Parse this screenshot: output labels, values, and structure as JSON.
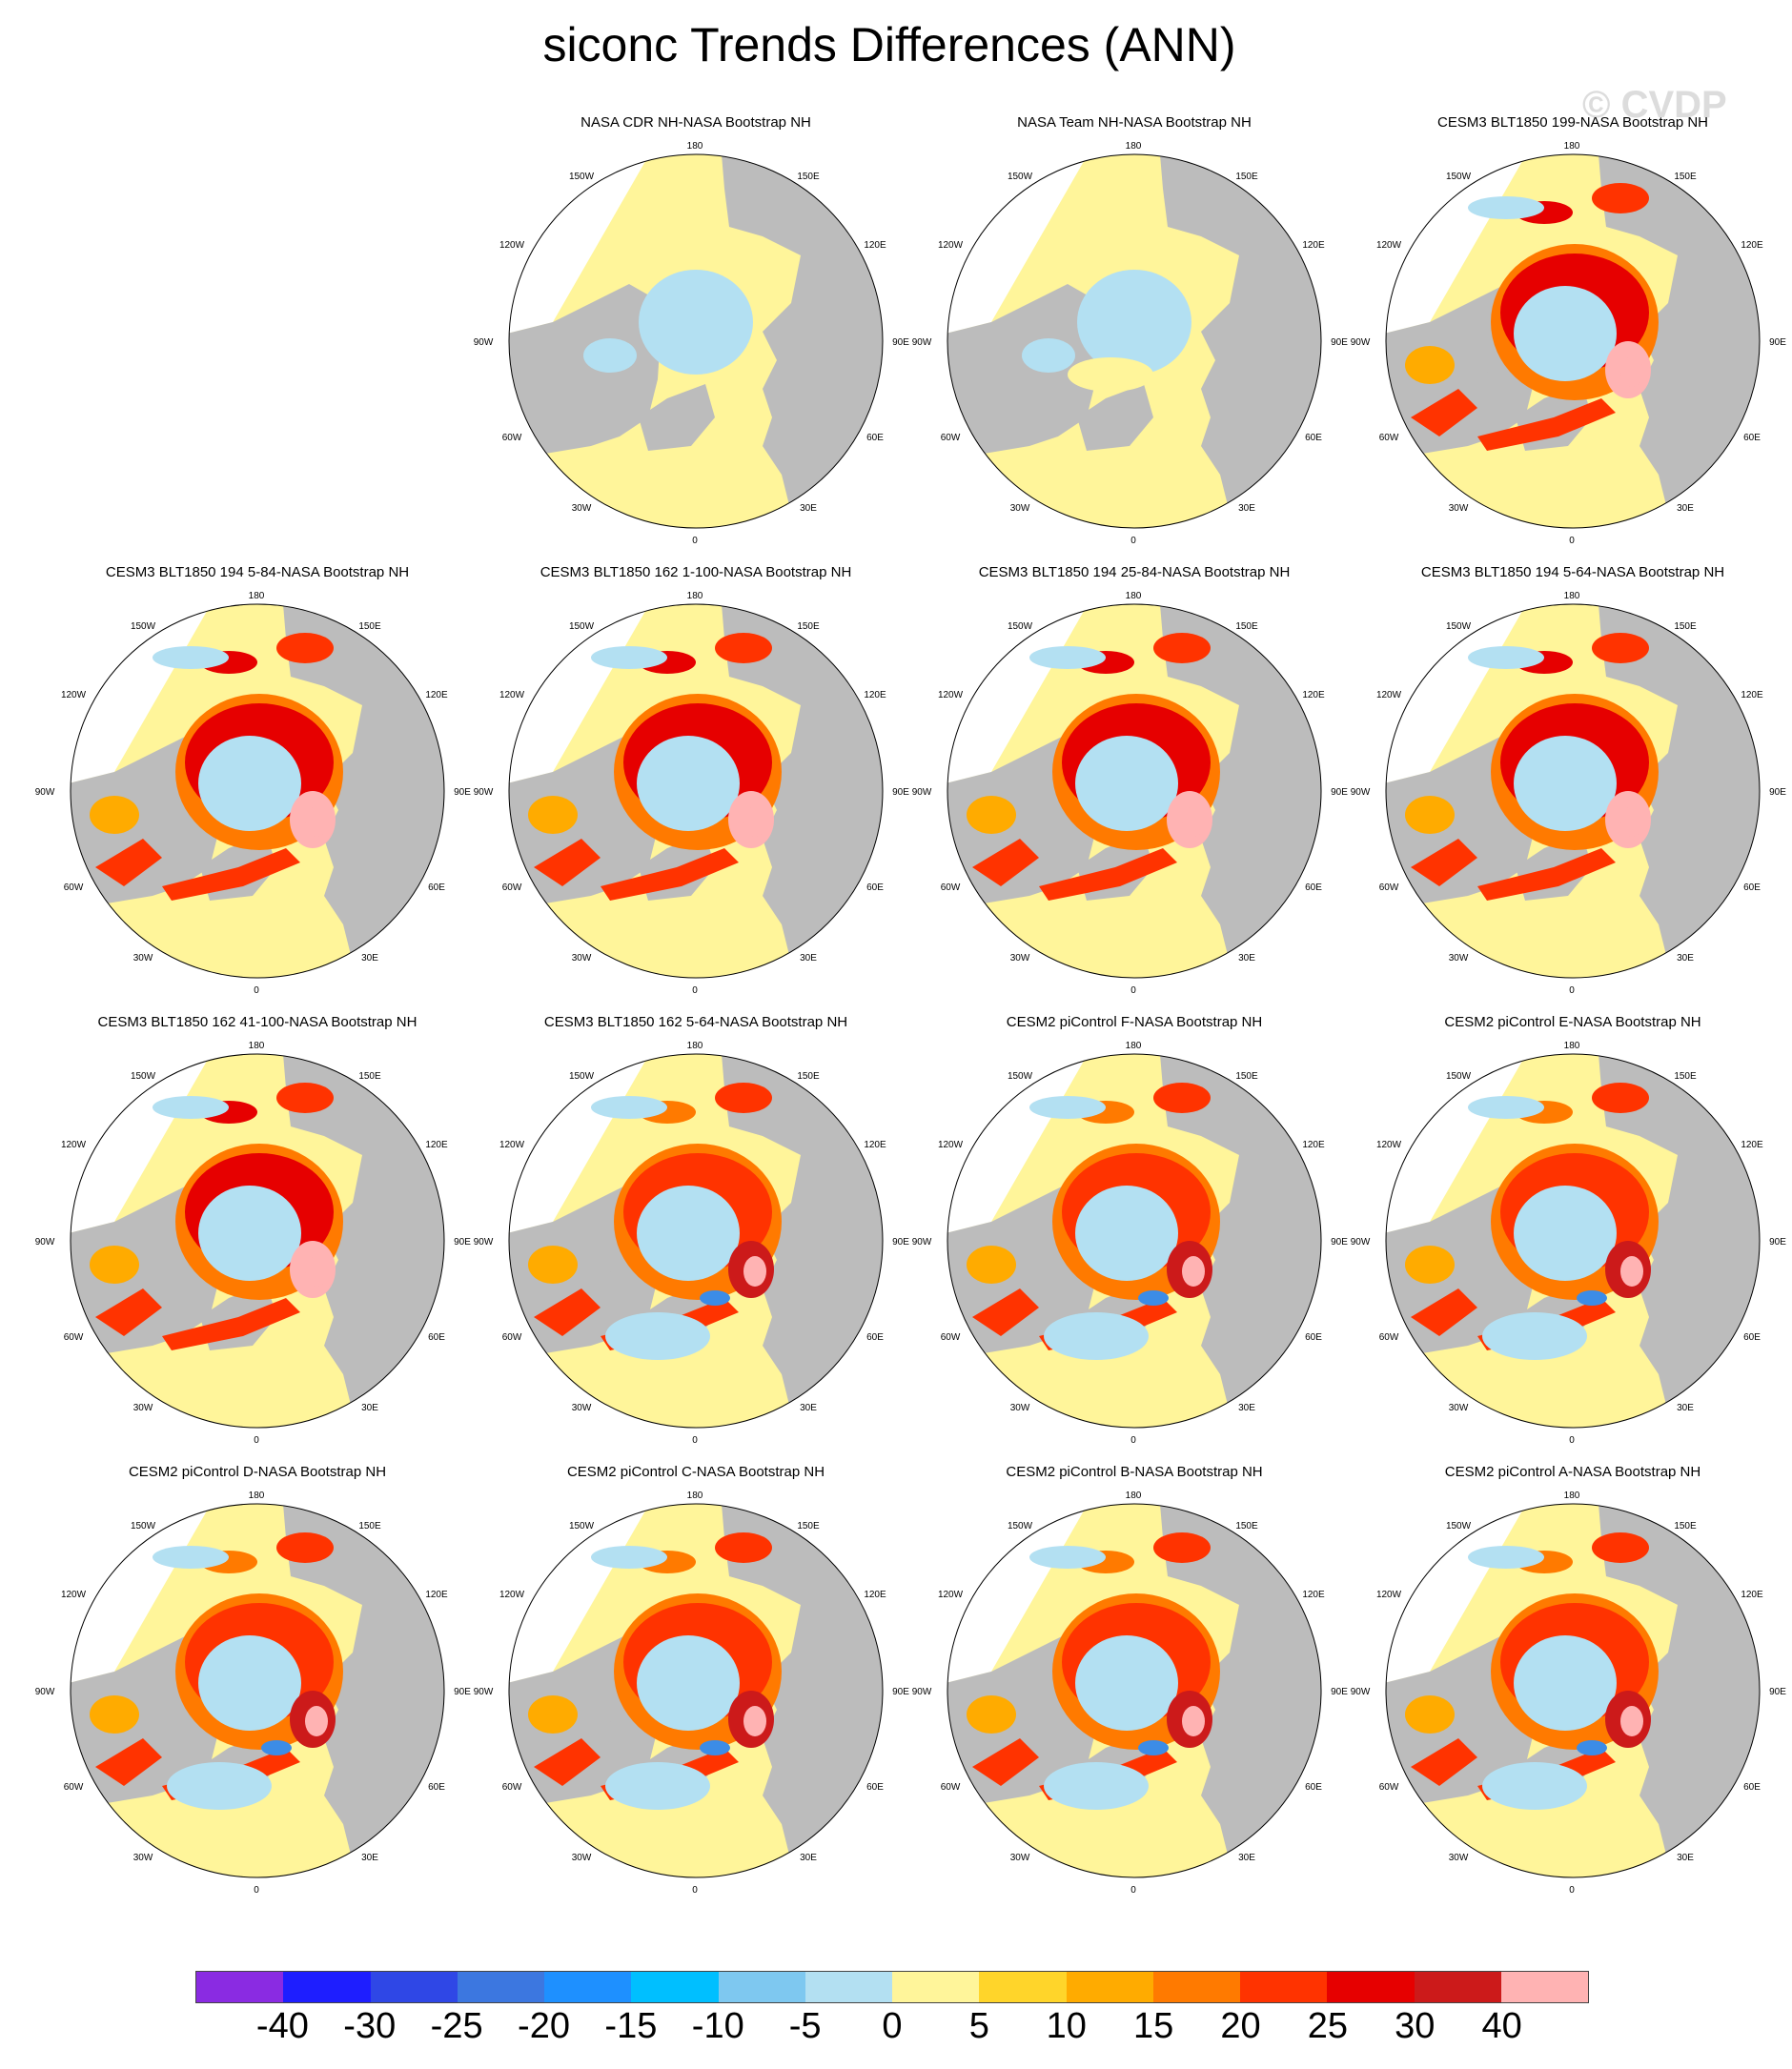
{
  "figure": {
    "title": "siconc Trends Differences (ANN)",
    "watermark": "© CVDP"
  },
  "map_labels": {
    "north": "180",
    "south": "0",
    "lon_labels": [
      "150W",
      "150E",
      "120W",
      "120E",
      "90W",
      "90E",
      "60W",
      "60E",
      "30W",
      "30E"
    ]
  },
  "panels": [
    {
      "title": "NASA CDR NH-NASA Bootstrap NH",
      "style": "obs"
    },
    {
      "title": "NASA Team NH-NASA Bootstrap NH",
      "style": "obs2"
    },
    {
      "title": "CESM3 BLT1850 199-NASA Bootstrap NH",
      "style": "strong"
    },
    {
      "title": "CESM3 BLT1850 194 5-84-NASA Bootstrap NH",
      "style": "strong"
    },
    {
      "title": "CESM3 BLT1850 162 1-100-NASA Bootstrap NH",
      "style": "strong"
    },
    {
      "title": "CESM3 BLT1850 194 25-84-NASA Bootstrap NH",
      "style": "strong"
    },
    {
      "title": "CESM3 BLT1850 194 5-64-NASA Bootstrap NH",
      "style": "strong"
    },
    {
      "title": "CESM3 BLT1850 162 41-100-NASA Bootstrap NH",
      "style": "strong"
    },
    {
      "title": "CESM3 BLT1850 162 5-64-NASA Bootstrap NH",
      "style": "mixed"
    },
    {
      "title": "CESM2 piControl F-NASA Bootstrap NH",
      "style": "mixed"
    },
    {
      "title": "CESM2 piControl E-NASA Bootstrap NH",
      "style": "mixed"
    },
    {
      "title": "CESM2 piControl D-NASA Bootstrap NH",
      "style": "mixed"
    },
    {
      "title": "CESM2 piControl C-NASA Bootstrap NH",
      "style": "mixed"
    },
    {
      "title": "CESM2 piControl B-NASA Bootstrap NH",
      "style": "mixed"
    },
    {
      "title": "CESM2 piControl A-NASA Bootstrap NH",
      "style": "mixed"
    }
  ],
  "colorbar": {
    "colors": [
      "#8a2be2",
      "#1e1eff",
      "#2f47e6",
      "#3c77e0",
      "#1e90ff",
      "#00bfff",
      "#7ec8f0",
      "#b3e0f2",
      "#fff59a",
      "#ffd52a",
      "#ffab00",
      "#ff7a00",
      "#ff3300",
      "#e60000",
      "#cc1a1a",
      "#ffb3b3"
    ],
    "labels": [
      "-40",
      "-30",
      "-25",
      "-20",
      "-15",
      "-10",
      "-5",
      "0",
      "5",
      "10",
      "15",
      "20",
      "25",
      "30",
      "40"
    ]
  },
  "map_colors": {
    "land": "#bcbcbc",
    "ocean_zero": "#fff59a",
    "ice_neg": "#b3e0f2",
    "ice_blue": "#3c8ce6",
    "pos1": "#ffd52a",
    "pos2": "#ffab00",
    "pos3": "#ff7a00",
    "pos4": "#ff3300",
    "pos5": "#e60000",
    "pos6": "#cc1a1a",
    "pos7": "#ffb3b3"
  }
}
